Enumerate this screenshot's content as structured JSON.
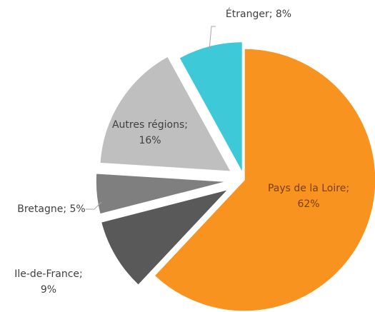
{
  "chart_data": {
    "type": "pie",
    "labels": [
      [
        "Pays de la Loire;",
        "62%"
      ],
      [
        "Ile-de-France;",
        "9%"
      ],
      [
        "Bretagne; 5%"
      ],
      [
        "Autres régions;",
        "16%"
      ],
      [
        "Étranger; 8%"
      ]
    ],
    "values": [
      62,
      9,
      5,
      16,
      8
    ],
    "colors": [
      "#f7931e",
      "#595959",
      "#7f7f7f",
      "#bfbfbf",
      "#3ec9d8"
    ]
  }
}
